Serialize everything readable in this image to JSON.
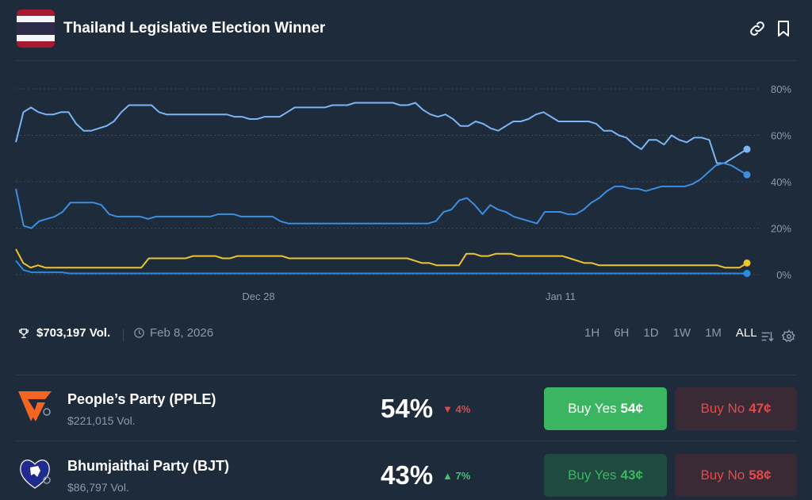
{
  "header": {
    "title": "Thailand Legislative Election Winner",
    "flag_colors": [
      "#a51931",
      "#f4f5f8",
      "#2d2a4a",
      "#f4f5f8",
      "#a51931"
    ],
    "icons": [
      "link-icon",
      "bookmark-icon"
    ]
  },
  "stats": {
    "volume": "$703,197 Vol.",
    "date": "Feb 8, 2026"
  },
  "time_ranges": [
    "1H",
    "6H",
    "1D",
    "1W",
    "1M",
    "ALL"
  ],
  "active_range": "ALL",
  "chart_data": {
    "type": "line",
    "x_tick_labels": [
      "Dec 28",
      "Jan 11"
    ],
    "y_tick_labels": [
      "80%",
      "60%",
      "40%",
      "20%",
      "0%"
    ],
    "ylim": [
      0,
      80
    ],
    "grid": true,
    "series": [
      {
        "color": "#7cb4f5",
        "values": [
          57,
          70,
          72,
          70,
          69,
          69,
          70,
          70,
          65,
          62,
          62,
          63,
          64,
          66,
          70,
          73,
          73,
          73,
          73,
          70,
          69,
          69,
          69,
          69,
          69,
          69,
          69,
          69,
          69,
          68,
          68,
          67,
          67,
          68,
          68,
          68,
          70,
          72,
          72,
          72,
          72,
          72,
          73,
          73,
          73,
          74,
          74,
          74,
          74,
          74,
          74,
          73,
          73,
          74,
          71,
          69,
          68,
          69,
          67,
          64,
          64,
          66,
          65,
          63,
          62,
          64,
          66,
          66,
          67,
          69,
          70,
          68,
          66,
          66,
          66,
          66,
          66,
          65,
          62,
          62,
          60,
          59,
          56,
          54,
          58,
          58,
          56,
          60,
          58,
          57,
          59,
          59,
          58,
          48,
          48,
          50,
          52,
          54
        ]
      },
      {
        "color": "#3c8ee0",
        "values": [
          37,
          21,
          20,
          23,
          24,
          25,
          27,
          31,
          31,
          31,
          31,
          30,
          26,
          25,
          25,
          25,
          25,
          24,
          25,
          25,
          25,
          25,
          25,
          25,
          25,
          25,
          26,
          26,
          26,
          25,
          25,
          25,
          25,
          25,
          23,
          22,
          22,
          22,
          22,
          22,
          22,
          22,
          22,
          22,
          22,
          22,
          22,
          22,
          22,
          22,
          22,
          22,
          22,
          22,
          23,
          27,
          28,
          32,
          33,
          30,
          26,
          30,
          28,
          27,
          25,
          24,
          23,
          22,
          27,
          27,
          27,
          26,
          26,
          28,
          31,
          33,
          36,
          38,
          38,
          37,
          37,
          36,
          37,
          38,
          38,
          38,
          38,
          39,
          41,
          44,
          47,
          48,
          47,
          45,
          43
        ]
      },
      {
        "color": "#f0c330",
        "values": [
          11,
          5,
          3,
          4,
          3,
          3,
          3,
          3,
          3,
          3,
          3,
          3,
          3,
          3,
          3,
          3,
          3,
          3,
          7,
          7,
          7,
          7,
          7,
          7,
          8,
          8,
          8,
          8,
          7,
          7,
          8,
          8,
          8,
          8,
          8,
          8,
          8,
          7,
          7,
          7,
          7,
          7,
          7,
          7,
          7,
          7,
          7,
          7,
          7,
          7,
          7,
          7,
          7,
          7,
          6,
          5,
          5,
          4,
          4,
          4,
          4,
          9,
          9,
          8,
          8,
          9,
          9,
          9,
          8,
          8,
          8,
          8,
          8,
          8,
          8,
          7,
          6,
          5,
          5,
          4,
          4,
          4,
          4,
          4,
          4,
          4,
          4,
          4,
          4,
          4,
          4,
          4,
          4,
          4,
          4,
          4,
          3,
          3,
          3,
          5
        ]
      },
      {
        "color": "#2a8ae0",
        "values": [
          6,
          2,
          1,
          1,
          1,
          1,
          1,
          0.5,
          0.5,
          0.5,
          0.5,
          0.5,
          0.5,
          0.5,
          0.5,
          0.5,
          0.5,
          0.5,
          0.5,
          0.5,
          0.5,
          0.5,
          0.5,
          0.5,
          0.5,
          0.5,
          0.5,
          0.5,
          0.5,
          0.5,
          0.5,
          0.5,
          0.5,
          0.5,
          0.5,
          0.5,
          0.5,
          0.5,
          0.5,
          0.5,
          0.5,
          0.5,
          0.5,
          0.5,
          0.5,
          0.5,
          0.5,
          0.5,
          0.5,
          0.5,
          0.5,
          0.5,
          0.5,
          0.5,
          0.5,
          0.5,
          0.5,
          0.5,
          0.5,
          0.5,
          0.5,
          0.5,
          0.5,
          0.5,
          0.5,
          0.5,
          0.5,
          0.5,
          0.5,
          0.5,
          0.5,
          0.5,
          0.5,
          0.5,
          0.5,
          0.5,
          0.5,
          0.5,
          0.5,
          0.5,
          0.5,
          0.5,
          0.5,
          0.5,
          0.5,
          0.5,
          0.5,
          0.5,
          0.5,
          0.5,
          0.5,
          0.5,
          0.5,
          0.5,
          0.5,
          0.5
        ]
      }
    ]
  },
  "outcomes": [
    {
      "name": "People’s Party (PPLE)",
      "volume": "$221,015 Vol.",
      "percent": "54%",
      "change": "4%",
      "change_dir": "down",
      "yes_label": "Buy Yes",
      "yes_price": "54¢",
      "no_label": "Buy No",
      "no_price": "47¢",
      "logo": "peoples-party-logo",
      "logo_color": "#f26522"
    },
    {
      "name": "Bhumjaithai Party (BJT)",
      "volume": "$86,797 Vol.",
      "percent": "43%",
      "change": "7%",
      "change_dir": "up",
      "yes_label": "Buy Yes",
      "yes_price": "43¢",
      "no_label": "Buy No",
      "no_price": "58¢",
      "logo": "bhumjaithai-party-logo",
      "logo_color": "#1f2b8f"
    }
  ],
  "colors": {
    "background": "#1d2b3a",
    "yes_active": "#3bb561",
    "yes_muted": "#1f4a3f",
    "no_muted": "#3a2a35",
    "no_text": "#e64848",
    "muted_text": "#8a9bb0"
  }
}
